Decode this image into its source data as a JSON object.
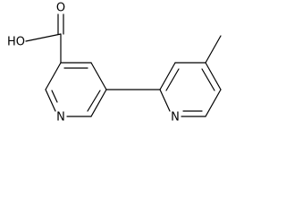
{
  "atoms": {
    "hydroxyl": "HO",
    "carbonyl_oxygen": "O",
    "nitrogen_left": "N",
    "nitrogen_right": "N"
  }
}
